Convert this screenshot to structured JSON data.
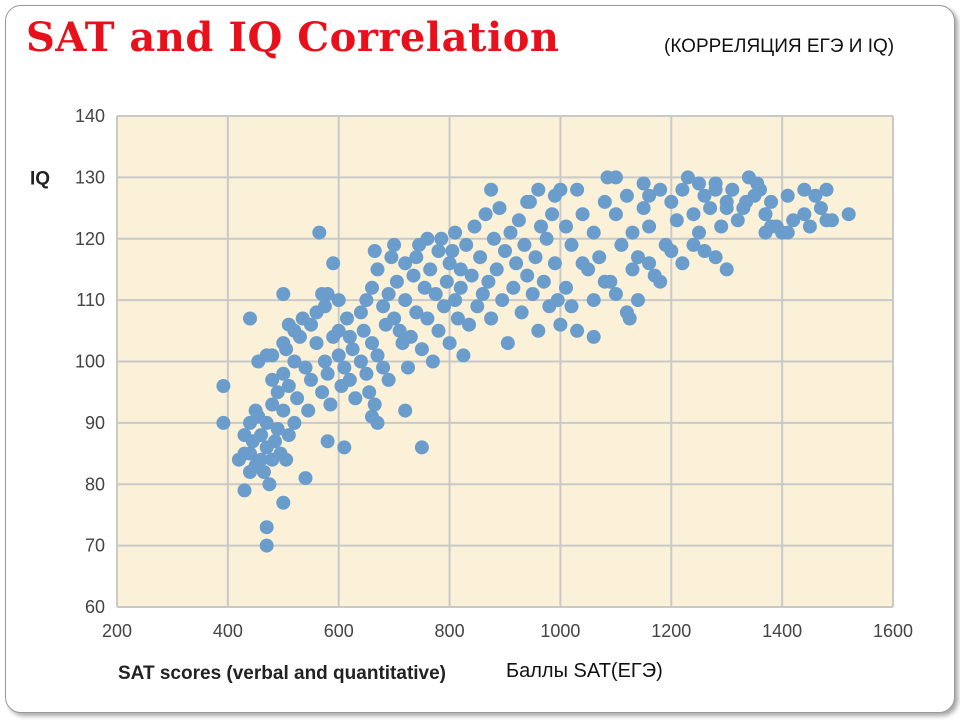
{
  "slide": {
    "title": "SAT and IQ Correlation",
    "subtitle": "(КОРРЕЛЯЦИЯ ЕГЭ И IQ)",
    "x_axis_extra": "Баллы SAT(ЕГЭ)"
  },
  "colors": {
    "title": "#e8101a",
    "plot_background": "#fbf1d8",
    "grid": "#c9c9c9",
    "points": "#6a9dcb"
  },
  "chart_data": {
    "type": "scatter",
    "title": "SAT and IQ Correlation",
    "xlabel": "SAT scores (verbal and quantitative)",
    "ylabel": "IQ",
    "xlim": [
      200,
      1600
    ],
    "ylim": [
      60,
      140
    ],
    "xticks": [
      200,
      400,
      600,
      800,
      1000,
      1200,
      1400,
      1600
    ],
    "yticks": [
      60,
      70,
      80,
      90,
      100,
      110,
      120,
      130,
      140
    ],
    "grid": true,
    "legend": false,
    "series": [
      {
        "points": [
          [
            392,
            96
          ],
          [
            392,
            90
          ],
          [
            430,
            79
          ],
          [
            470,
            70
          ],
          [
            470,
            73
          ],
          [
            500,
            77
          ],
          [
            440,
            107
          ],
          [
            565,
            121
          ],
          [
            570,
            111
          ],
          [
            590,
            116
          ],
          [
            600,
            110
          ],
          [
            500,
            111
          ],
          [
            750,
            86
          ],
          [
            720,
            92
          ],
          [
            670,
            90
          ],
          [
            660,
            91
          ],
          [
            610,
            86
          ],
          [
            580,
            87
          ],
          [
            540,
            81
          ],
          [
            420,
            84
          ],
          [
            430,
            85
          ],
          [
            430,
            88
          ],
          [
            440,
            82
          ],
          [
            440,
            85
          ],
          [
            445,
            87
          ],
          [
            450,
            83
          ],
          [
            455,
            91
          ],
          [
            460,
            84
          ],
          [
            460,
            88
          ],
          [
            465,
            82
          ],
          [
            470,
            86
          ],
          [
            470,
            90
          ],
          [
            475,
            80
          ],
          [
            480,
            84
          ],
          [
            480,
            93
          ],
          [
            485,
            87
          ],
          [
            490,
            89
          ],
          [
            495,
            85
          ],
          [
            500,
            92
          ],
          [
            505,
            84
          ],
          [
            510,
            88
          ],
          [
            520,
            90
          ],
          [
            450,
            92
          ],
          [
            440,
            90
          ],
          [
            455,
            100
          ],
          [
            470,
            101
          ],
          [
            480,
            97
          ],
          [
            490,
            95
          ],
          [
            500,
            98
          ],
          [
            505,
            102
          ],
          [
            510,
            96
          ],
          [
            520,
            100
          ],
          [
            525,
            94
          ],
          [
            530,
            104
          ],
          [
            540,
            99
          ],
          [
            545,
            92
          ],
          [
            550,
            97
          ],
          [
            560,
            103
          ],
          [
            570,
            95
          ],
          [
            575,
            100
          ],
          [
            580,
            98
          ],
          [
            585,
            93
          ],
          [
            590,
            104
          ],
          [
            600,
            101
          ],
          [
            605,
            96
          ],
          [
            610,
            99
          ],
          [
            615,
            107
          ],
          [
            620,
            97
          ],
          [
            625,
            102
          ],
          [
            630,
            94
          ],
          [
            640,
            100
          ],
          [
            645,
            105
          ],
          [
            650,
            98
          ],
          [
            655,
            95
          ],
          [
            660,
            103
          ],
          [
            665,
            93
          ],
          [
            670,
            101
          ],
          [
            680,
            99
          ],
          [
            685,
            106
          ],
          [
            690,
            97
          ],
          [
            480,
            101
          ],
          [
            500,
            103
          ],
          [
            510,
            106
          ],
          [
            520,
            105
          ],
          [
            535,
            107
          ],
          [
            550,
            106
          ],
          [
            560,
            108
          ],
          [
            575,
            109
          ],
          [
            580,
            111
          ],
          [
            600,
            105
          ],
          [
            620,
            104
          ],
          [
            640,
            108
          ],
          [
            650,
            110
          ],
          [
            660,
            112
          ],
          [
            665,
            118
          ],
          [
            670,
            115
          ],
          [
            680,
            109
          ],
          [
            690,
            111
          ],
          [
            695,
            117
          ],
          [
            700,
            107
          ],
          [
            705,
            113
          ],
          [
            710,
            105
          ],
          [
            715,
            103
          ],
          [
            720,
            110
          ],
          [
            725,
            99
          ],
          [
            730,
            104
          ],
          [
            735,
            114
          ],
          [
            740,
            108
          ],
          [
            745,
            119
          ],
          [
            750,
            102
          ],
          [
            755,
            112
          ],
          [
            760,
            107
          ],
          [
            765,
            115
          ],
          [
            770,
            100
          ],
          [
            775,
            111
          ],
          [
            780,
            105
          ],
          [
            785,
            120
          ],
          [
            790,
            109
          ],
          [
            795,
            113
          ],
          [
            800,
            103
          ],
          [
            805,
            118
          ],
          [
            810,
            110
          ],
          [
            815,
            107
          ],
          [
            820,
            115
          ],
          [
            825,
            101
          ],
          [
            700,
            119
          ],
          [
            720,
            116
          ],
          [
            740,
            117
          ],
          [
            760,
            120
          ],
          [
            780,
            118
          ],
          [
            800,
            116
          ],
          [
            810,
            121
          ],
          [
            820,
            112
          ],
          [
            830,
            119
          ],
          [
            835,
            106
          ],
          [
            840,
            114
          ],
          [
            845,
            122
          ],
          [
            850,
            109
          ],
          [
            855,
            117
          ],
          [
            860,
            111
          ],
          [
            865,
            124
          ],
          [
            870,
            113
          ],
          [
            875,
            107
          ],
          [
            880,
            120
          ],
          [
            885,
            115
          ],
          [
            890,
            125
          ],
          [
            895,
            110
          ],
          [
            900,
            118
          ],
          [
            905,
            103
          ],
          [
            910,
            121
          ],
          [
            915,
            112
          ],
          [
            920,
            116
          ],
          [
            925,
            123
          ],
          [
            930,
            108
          ],
          [
            935,
            119
          ],
          [
            940,
            114
          ],
          [
            945,
            126
          ],
          [
            950,
            111
          ],
          [
            955,
            117
          ],
          [
            960,
            105
          ],
          [
            965,
            122
          ],
          [
            970,
            113
          ],
          [
            975,
            120
          ],
          [
            980,
            109
          ],
          [
            985,
            124
          ],
          [
            990,
            116
          ],
          [
            995,
            110
          ],
          [
            875,
            128
          ],
          [
            940,
            126
          ],
          [
            960,
            128
          ],
          [
            990,
            127
          ],
          [
            1000,
            128
          ],
          [
            1010,
            122
          ],
          [
            1020,
            119
          ],
          [
            1030,
            128
          ],
          [
            1040,
            124
          ],
          [
            1050,
            115
          ],
          [
            1060,
            121
          ],
          [
            1070,
            117
          ],
          [
            1080,
            126
          ],
          [
            1085,
            130
          ],
          [
            1090,
            113
          ],
          [
            1100,
            124
          ],
          [
            1110,
            119
          ],
          [
            1120,
            127
          ],
          [
            1130,
            121
          ],
          [
            1140,
            117
          ],
          [
            1150,
            125
          ],
          [
            1160,
            122
          ],
          [
            1170,
            114
          ],
          [
            1180,
            128
          ],
          [
            1190,
            119
          ],
          [
            1000,
            106
          ],
          [
            1010,
            112
          ],
          [
            1020,
            109
          ],
          [
            1030,
            105
          ],
          [
            1040,
            116
          ],
          [
            1060,
            110
          ],
          [
            1080,
            113
          ],
          [
            1100,
            111
          ],
          [
            1120,
            108
          ],
          [
            1130,
            115
          ],
          [
            1140,
            110
          ],
          [
            1160,
            116
          ],
          [
            1180,
            113
          ],
          [
            1200,
            118
          ],
          [
            1220,
            116
          ],
          [
            1240,
            119
          ],
          [
            1260,
            118
          ],
          [
            1280,
            117
          ],
          [
            1300,
            115
          ],
          [
            1125,
            107
          ],
          [
            1060,
            104
          ],
          [
            1200,
            126
          ],
          [
            1210,
            123
          ],
          [
            1220,
            128
          ],
          [
            1230,
            130
          ],
          [
            1240,
            124
          ],
          [
            1250,
            121
          ],
          [
            1260,
            127
          ],
          [
            1270,
            125
          ],
          [
            1280,
            129
          ],
          [
            1290,
            122
          ],
          [
            1300,
            126
          ],
          [
            1310,
            128
          ],
          [
            1320,
            123
          ],
          [
            1330,
            125
          ],
          [
            1340,
            130
          ],
          [
            1350,
            127
          ],
          [
            1360,
            128
          ],
          [
            1370,
            124
          ],
          [
            1380,
            126
          ],
          [
            1390,
            122
          ],
          [
            1400,
            121
          ],
          [
            1410,
            127
          ],
          [
            1420,
            123
          ],
          [
            1440,
            124
          ],
          [
            1450,
            122
          ],
          [
            1460,
            127
          ],
          [
            1480,
            128
          ],
          [
            1490,
            123
          ],
          [
            1520,
            124
          ],
          [
            1100,
            130
          ],
          [
            1150,
            129
          ],
          [
            1160,
            127
          ],
          [
            1250,
            129
          ],
          [
            1280,
            128
          ],
          [
            1300,
            125
          ],
          [
            1335,
            126
          ],
          [
            1355,
            129
          ],
          [
            1370,
            121
          ],
          [
            1380,
            122
          ],
          [
            1410,
            121
          ],
          [
            1440,
            128
          ],
          [
            1470,
            125
          ],
          [
            1480,
            123
          ]
        ]
      }
    ]
  }
}
